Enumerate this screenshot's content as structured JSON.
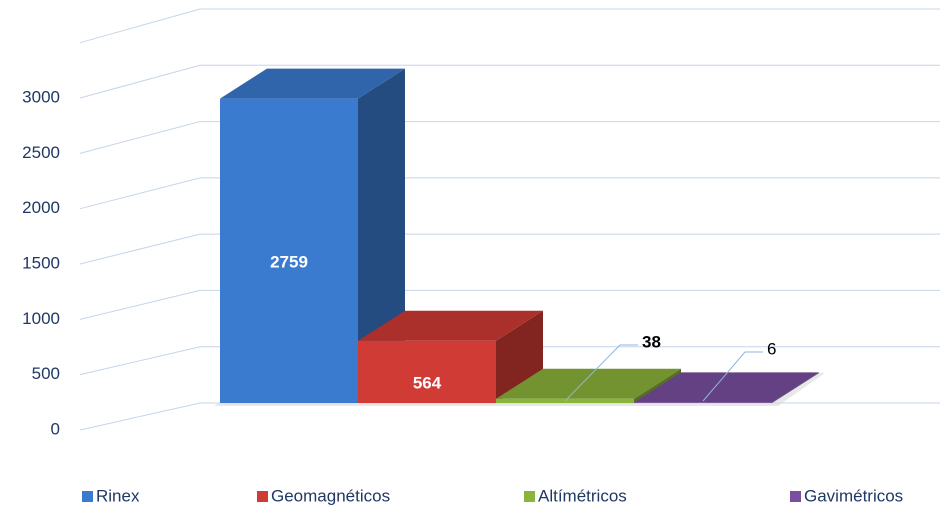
{
  "chart_data": {
    "type": "bar3d",
    "categories": [
      "Rinex",
      "Geomagnéticos",
      "Altímétricos",
      "Gavimétricos"
    ],
    "values": [
      2759,
      564,
      38,
      6
    ],
    "colors": [
      "#3a7bd0",
      "#d13b36",
      "#8cb33c",
      "#7a4f9f"
    ],
    "ylim": [
      0,
      3500
    ],
    "yticks": [
      0,
      500,
      1000,
      1500,
      2000,
      2500,
      3000
    ],
    "grid": true,
    "legend": "bottom"
  }
}
